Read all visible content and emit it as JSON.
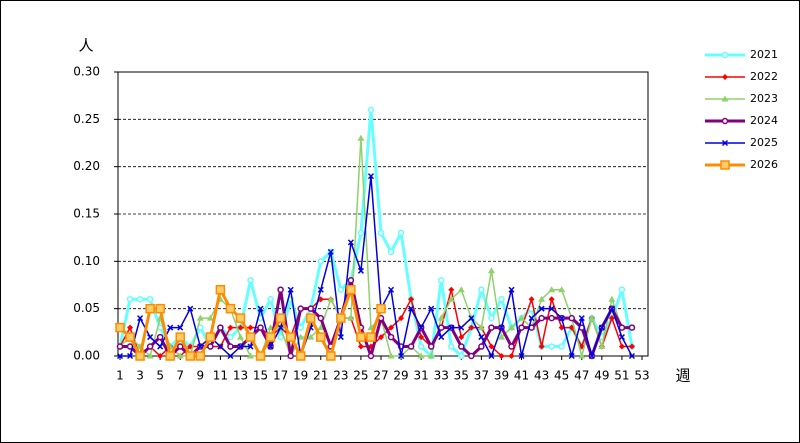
{
  "chart_data": {
    "type": "line",
    "y_label": "人",
    "x_label": "週",
    "x": [
      1,
      2,
      3,
      4,
      5,
      6,
      7,
      8,
      9,
      10,
      11,
      12,
      13,
      14,
      15,
      16,
      17,
      18,
      19,
      20,
      21,
      22,
      23,
      24,
      25,
      26,
      27,
      28,
      29,
      30,
      31,
      32,
      33,
      34,
      35,
      36,
      37,
      38,
      39,
      40,
      41,
      42,
      43,
      44,
      45,
      46,
      47,
      48,
      49,
      50,
      51,
      52
    ],
    "xlim": [
      1,
      53
    ],
    "xticks": [
      1,
      3,
      5,
      7,
      9,
      11,
      13,
      15,
      17,
      19,
      21,
      23,
      25,
      27,
      29,
      31,
      33,
      35,
      37,
      39,
      41,
      43,
      45,
      47,
      49,
      51,
      53
    ],
    "ylim": [
      0,
      0.3
    ],
    "yticks": [
      {
        "value": 0,
        "label": "0.00"
      },
      0.05,
      {
        "value": 0.1,
        "label": "0.10"
      },
      0.15,
      {
        "value": 0.2,
        "label": "0.20"
      },
      0.25,
      {
        "value": 0.3,
        "label": "0.30"
      }
    ],
    "grid": true,
    "legend": "right",
    "series": [
      {
        "name": "2021",
        "color": "#66ffff",
        "marker": "circle",
        "width": 3,
        "values": [
          0.01,
          0.06,
          0.06,
          0.06,
          0.03,
          0.01,
          0.02,
          0.01,
          0.03,
          0.01,
          0.03,
          0.02,
          0.03,
          0.08,
          0.04,
          0.06,
          0.02,
          0.06,
          0.03,
          0.05,
          0.1,
          0.11,
          0.07,
          0.08,
          0.13,
          0.26,
          0.13,
          0.11,
          0.13,
          0.06,
          0.01,
          0.0,
          0.08,
          0.01,
          0.0,
          0.03,
          0.07,
          0.04,
          0.06,
          0.03,
          0.04,
          0.05,
          0.01,
          0.01,
          0.01,
          0.03,
          0.01,
          0.04,
          0.02,
          0.04,
          0.07,
          0.01
        ]
      },
      {
        "name": "2022",
        "color": "#ff0000",
        "marker": "diamond",
        "width": 1.5,
        "values": [
          0.01,
          0.03,
          0.0,
          0.01,
          0.0,
          0.01,
          0.0,
          0.01,
          0.01,
          0.01,
          0.01,
          0.03,
          0.03,
          0.03,
          0.03,
          0.02,
          0.03,
          0.02,
          0.05,
          0.05,
          0.06,
          0.06,
          0.04,
          0.04,
          0.01,
          0.01,
          0.02,
          0.03,
          0.04,
          0.06,
          0.02,
          0.01,
          0.03,
          0.07,
          0.02,
          0.03,
          0.03,
          0.01,
          0.0,
          0.0,
          0.03,
          0.06,
          0.01,
          0.06,
          0.03,
          0.03,
          0.01,
          0.04,
          0.01,
          0.04,
          0.01,
          0.01
        ]
      },
      {
        "name": "2023",
        "color": "#8fd16b",
        "marker": "triangle",
        "width": 1.5,
        "values": [
          0.01,
          0.02,
          0.01,
          0.0,
          0.04,
          0.01,
          0.0,
          0.0,
          0.04,
          0.04,
          0.06,
          0.05,
          0.02,
          0.0,
          0.0,
          0.03,
          0.03,
          0.0,
          0.02,
          0.02,
          0.03,
          0.06,
          0.04,
          0.04,
          0.23,
          0.03,
          0.04,
          0.0,
          0.0,
          0.01,
          0.0,
          0.0,
          0.04,
          0.06,
          0.07,
          0.04,
          0.03,
          0.09,
          0.02,
          0.03,
          0.04,
          0.03,
          0.06,
          0.07,
          0.07,
          0.04,
          0.0,
          0.04,
          0.01,
          0.06,
          0.03,
          0.03
        ]
      },
      {
        "name": "2024",
        "color": "#800080",
        "marker": "circle",
        "width": 3,
        "values": [
          0.01,
          0.01,
          0.0,
          0.01,
          0.02,
          0.0,
          0.01,
          0.0,
          0.01,
          0.01,
          0.03,
          0.01,
          0.01,
          0.02,
          0.03,
          0.01,
          0.07,
          0.0,
          0.05,
          0.05,
          0.04,
          0.01,
          0.04,
          0.08,
          0.03,
          0.0,
          0.04,
          0.02,
          0.01,
          0.01,
          0.03,
          0.01,
          0.03,
          0.03,
          0.01,
          0.0,
          0.01,
          0.03,
          0.03,
          0.01,
          0.03,
          0.03,
          0.04,
          0.04,
          0.04,
          0.04,
          0.03,
          0.0,
          0.03,
          0.05,
          0.03,
          0.03
        ]
      },
      {
        "name": "2025",
        "color": "#0000e0",
        "marker": "x",
        "width": 1.5,
        "values": [
          0.0,
          0.0,
          0.04,
          0.02,
          0.01,
          0.03,
          0.03,
          0.05,
          0.01,
          0.02,
          0.01,
          0.0,
          0.01,
          0.01,
          0.05,
          0.01,
          0.03,
          0.07,
          0.0,
          0.03,
          0.07,
          0.11,
          0.02,
          0.12,
          0.09,
          0.19,
          0.05,
          0.07,
          0.0,
          0.05,
          0.03,
          0.05,
          0.02,
          0.03,
          0.03,
          0.04,
          0.02,
          0.0,
          0.03,
          0.07,
          0.0,
          0.04,
          0.05,
          0.05,
          0.04,
          0.0,
          0.04,
          0.0,
          0.03,
          0.05,
          0.02,
          0.0
        ]
      },
      {
        "name": "2026",
        "color": "#ff8c00",
        "marker": "square",
        "width": 3,
        "values": [
          0.03,
          0.02,
          0.0,
          0.05,
          0.05,
          0.0,
          0.02,
          0.0,
          0.0,
          0.02,
          0.07,
          0.05,
          0.04,
          0.02,
          0.0,
          0.02,
          0.04,
          0.02,
          0.0,
          0.04,
          0.02,
          0.0,
          0.04,
          0.07,
          0.02,
          0.02,
          0.05,
          null,
          null,
          null,
          null,
          null,
          null,
          null,
          null,
          null,
          null,
          null,
          null,
          null,
          null,
          null,
          null,
          null,
          null,
          null,
          null,
          null,
          null,
          null,
          null,
          null
        ]
      }
    ]
  }
}
